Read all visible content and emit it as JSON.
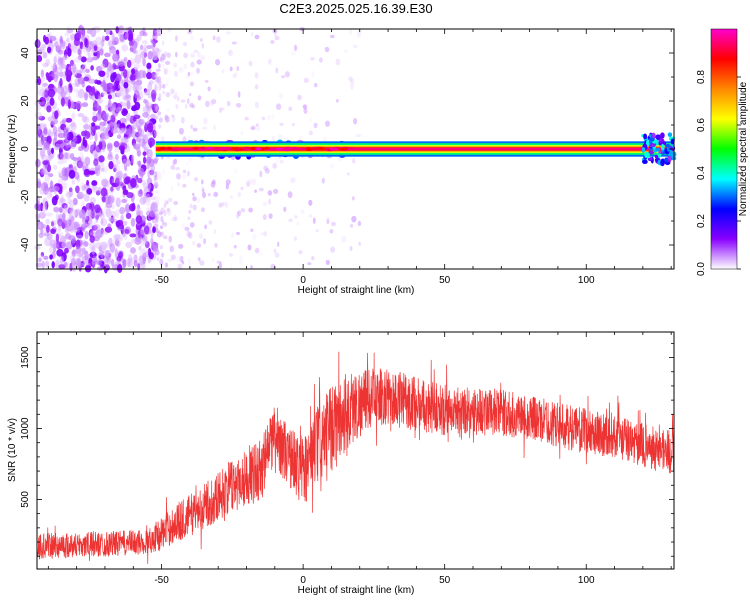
{
  "figure_title": "C2E3.2025.025.16.39.E30",
  "chart_data": [
    {
      "type": "heatmap",
      "title": "",
      "xlabel": "Height of straight line (km)",
      "ylabel": "Frequency (Hz)",
      "xlim": [
        -94,
        131
      ],
      "ylim": [
        -50,
        50
      ],
      "x_ticks": [
        -50,
        0,
        50,
        100
      ],
      "y_ticks": [
        -40,
        -20,
        0,
        20,
        40
      ],
      "colorbar": {
        "label": "Normalized spectral amplitude",
        "range": [
          0,
          1
        ],
        "ticks": [
          0,
          0.2,
          0.4,
          0.6,
          0.8
        ],
        "colormap": [
          "#ffffff",
          "#8800ff",
          "#0000ff",
          "#00ffff",
          "#00ff00",
          "#ffff00",
          "#ff8800",
          "#ff0000",
          "#ff00cc"
        ]
      },
      "regions": [
        {
          "name": "noise",
          "x_range": [
            -94,
            -52
          ],
          "freq_range": [
            -50,
            50
          ],
          "amplitude": [
            0.05,
            0.15
          ]
        },
        {
          "name": "sparse-noise",
          "x_range": [
            -52,
            20
          ],
          "freq_range": [
            -50,
            50
          ],
          "amplitude": [
            0.0,
            0.06
          ]
        },
        {
          "name": "carrier",
          "x_range": [
            -52,
            131
          ],
          "freq_range": [
            -1.5,
            1.5
          ],
          "amplitude": [
            0.85,
            1.0
          ]
        },
        {
          "name": "carrier-spread",
          "x_range": [
            -40,
            15
          ],
          "freq_range": [
            -4,
            4
          ],
          "amplitude": [
            0.2,
            0.45
          ]
        },
        {
          "name": "edge-noise",
          "x_range": [
            120,
            131
          ],
          "freq_range": [
            -6,
            6
          ],
          "amplitude": [
            0.1,
            0.4
          ]
        }
      ]
    },
    {
      "type": "line",
      "title": "",
      "xlabel": "Height of straight line (km)",
      "ylabel": "SNR (10 * v/v)",
      "xlim": [
        -94,
        131
      ],
      "ylim": [
        10,
        1680
      ],
      "x_ticks": [
        -50,
        0,
        50,
        100
      ],
      "y_ticks": [
        500,
        1000,
        1500
      ],
      "series": [
        {
          "color": "#ee3333",
          "envelope": {
            "x": [
              -94,
              -80,
              -65,
              -55,
              -45,
              -35,
              -25,
              -15,
              -10,
              -5,
              0,
              5,
              10,
              14,
              18,
              25,
              35,
              50,
              65,
              80,
              95,
              110,
              120,
              131
            ],
            "mean": [
              170,
              180,
              190,
              200,
              330,
              450,
              600,
              720,
              960,
              800,
              700,
              870,
              1000,
              1080,
              1150,
              1230,
              1200,
              1130,
              1120,
              1080,
              1000,
              950,
              880,
              830
            ],
            "amp": [
              90,
              90,
              90,
              90,
              140,
              160,
              190,
              220,
              220,
              220,
              260,
              280,
              300,
              330,
              260,
              200,
              200,
              180,
              170,
              160,
              160,
              160,
              160,
              160
            ]
          }
        }
      ]
    }
  ]
}
